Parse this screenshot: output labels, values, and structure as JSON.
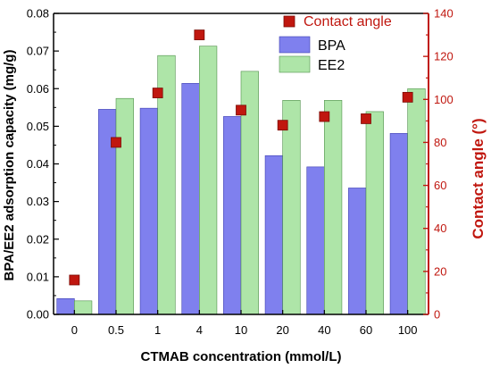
{
  "chart_data": {
    "type": "bar",
    "categories": [
      "0",
      "0.5",
      "1",
      "4",
      "10",
      "20",
      "40",
      "60",
      "100"
    ],
    "series": [
      {
        "name": "BPA",
        "axis": "left",
        "color": "#7f80ee",
        "values": [
          0.0042,
          0.0545,
          0.0548,
          0.0614,
          0.0526,
          0.0422,
          0.0392,
          0.0336,
          0.0481
        ]
      },
      {
        "name": "EE2",
        "axis": "left",
        "color": "#aee5a8",
        "values": [
          0.0036,
          0.0574,
          0.0688,
          0.0713,
          0.0646,
          0.0569,
          0.0569,
          0.0539,
          0.06
        ]
      },
      {
        "name": "Contact angle",
        "axis": "right",
        "kind": "scatter",
        "color": "#c0170f",
        "values": [
          16,
          80,
          103,
          130,
          95,
          88,
          92,
          91,
          101
        ]
      }
    ],
    "xlabel": "CTMAB concentration (mmol/L)",
    "ylabel": "BPA/EE2 adsorption capacity (mg/g)",
    "y2label": "Contact angle (°)",
    "ylim": [
      0,
      0.08
    ],
    "y2lim": [
      0,
      140
    ],
    "yticks": [
      "0.00",
      "0.01",
      "0.02",
      "0.03",
      "0.04",
      "0.05",
      "0.06",
      "0.07",
      "0.08"
    ],
    "y2ticks": [
      "0",
      "20",
      "40",
      "60",
      "80",
      "100",
      "120",
      "140"
    ],
    "legend": {
      "position": "top-right"
    },
    "grid": false,
    "colors": {
      "left_axis": "#000000",
      "right_axis": "#c0170f"
    }
  }
}
